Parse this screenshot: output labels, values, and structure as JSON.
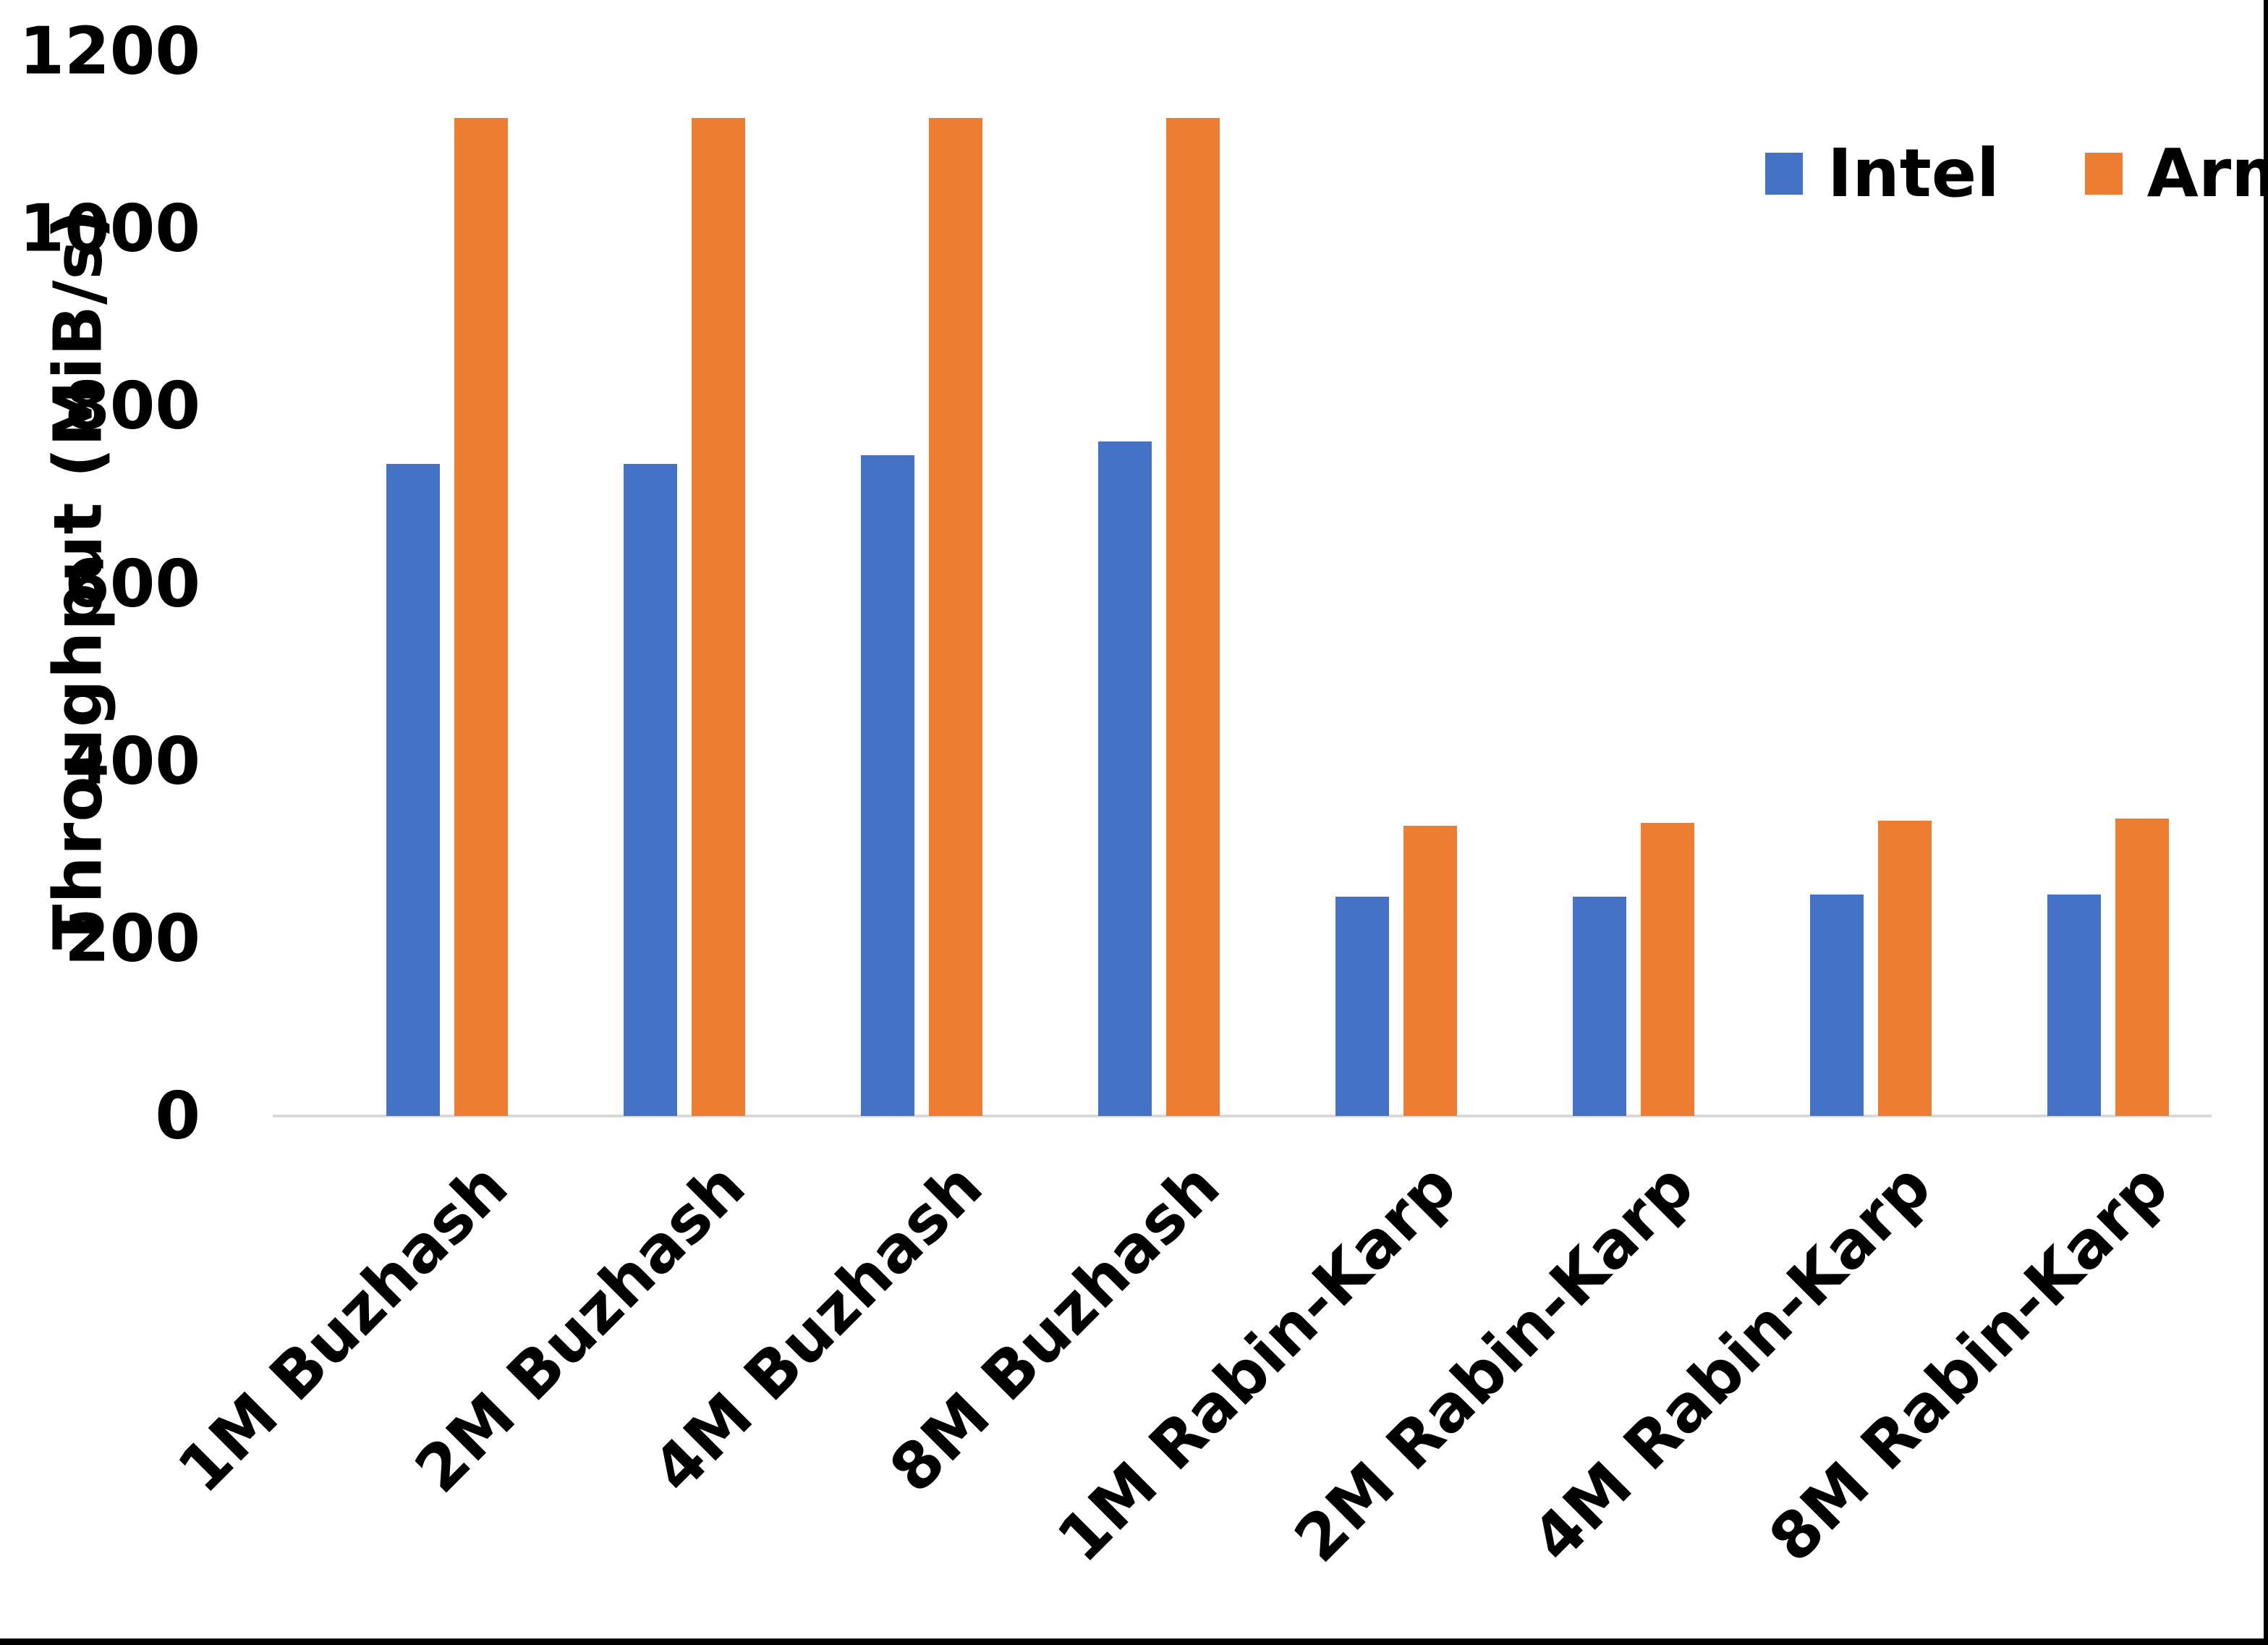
{
  "chart_data": {
    "type": "bar",
    "title": "",
    "xlabel": "",
    "ylabel": "Throughput (MiB/s)",
    "categories": [
      "1M Buzhash",
      "2M Buzhash",
      "4M Buzhash",
      "8M Buzhash",
      "1M Rabin-Karp",
      "2M Rabin-Karp",
      "4M Rabin-Karp",
      "8M Rabin-Karp"
    ],
    "series": [
      {
        "name": "Intel",
        "color": "#4472C4",
        "values": [
          735,
          735,
          745,
          760,
          247,
          247,
          250,
          250
        ]
      },
      {
        "name": "Arm",
        "color": "#ED7D31",
        "values": [
          1125,
          1125,
          1125,
          1125,
          327,
          330,
          333,
          335
        ]
      }
    ],
    "ylim": [
      0,
      1200
    ],
    "yticks": [
      0,
      200,
      400,
      600,
      800,
      1000,
      1200
    ],
    "grid": false,
    "legend_position": "top-right",
    "axis_line_color": "#D9D9D9",
    "text_color": "#000000",
    "frame_border_color": "#000000"
  }
}
